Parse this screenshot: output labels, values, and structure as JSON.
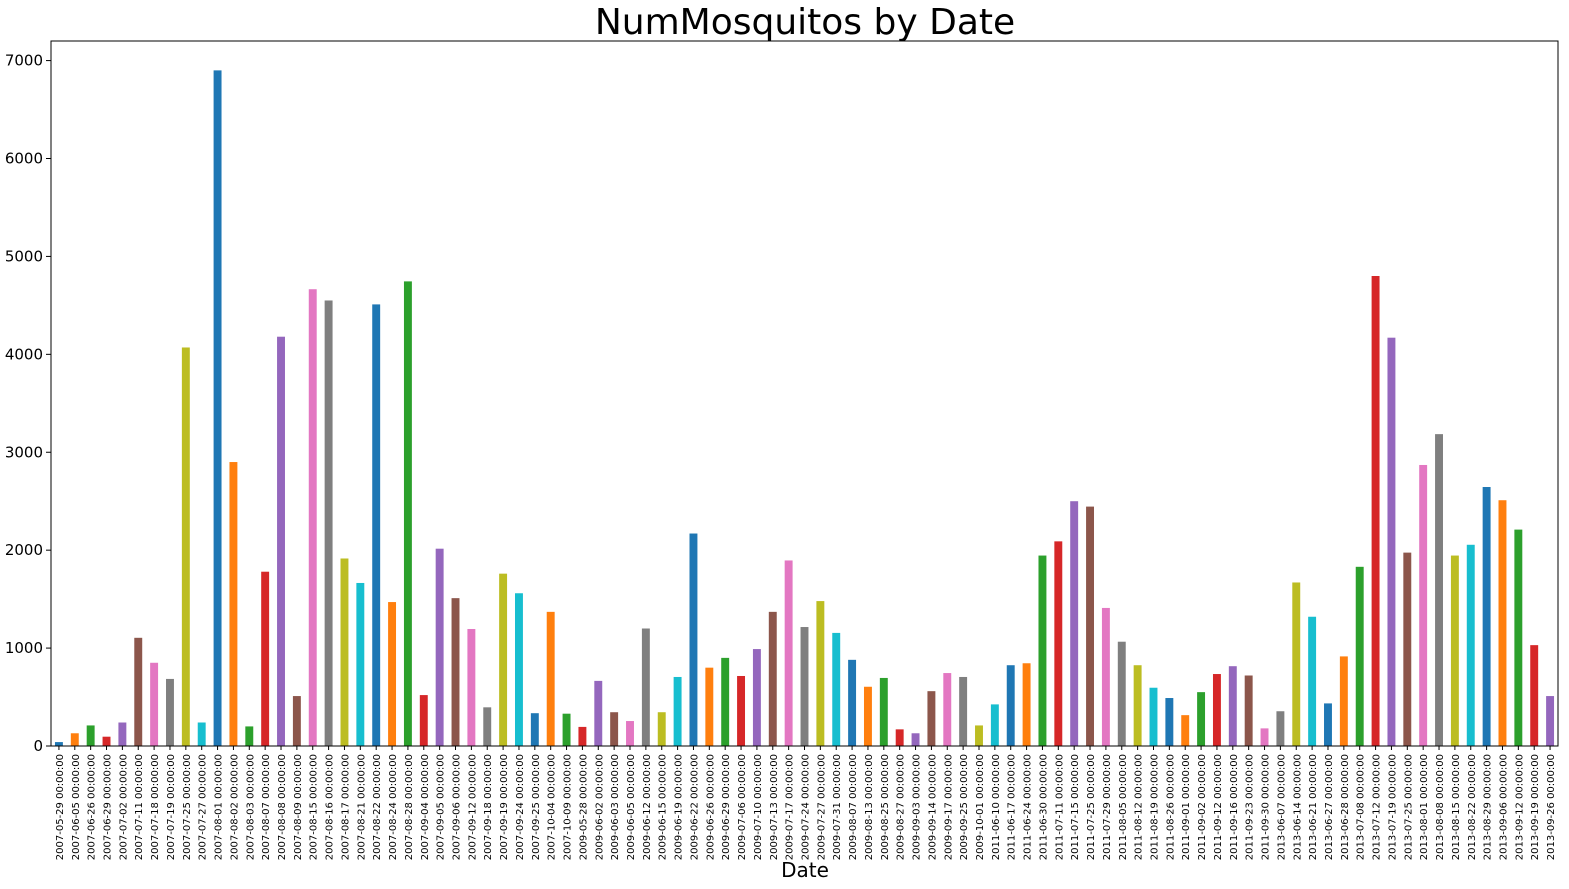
{
  "chart_data": {
    "type": "bar",
    "title": "NumMosquitos by Date",
    "xlabel": "Date",
    "ylabel": "",
    "ylim": [
      0,
      7200
    ],
    "yticks": [
      0,
      1000,
      2000,
      3000,
      4000,
      5000,
      6000,
      7000
    ],
    "grid": false,
    "legend": "none",
    "color_cycle": [
      "#1f77b4",
      "#ff7f0e",
      "#2ca02c",
      "#d62728",
      "#9467bd",
      "#8c564b",
      "#e377c2",
      "#7f7f7f",
      "#bcbd22",
      "#17becf"
    ],
    "categories": [
      "2007-05-29 00:00:00",
      "2007-06-05 00:00:00",
      "2007-06-26 00:00:00",
      "2007-06-29 00:00:00",
      "2007-07-02 00:00:00",
      "2007-07-11 00:00:00",
      "2007-07-18 00:00:00",
      "2007-07-19 00:00:00",
      "2007-07-25 00:00:00",
      "2007-07-27 00:00:00",
      "2007-08-01 00:00:00",
      "2007-08-02 00:00:00",
      "2007-08-03 00:00:00",
      "2007-08-07 00:00:00",
      "2007-08-08 00:00:00",
      "2007-08-09 00:00:00",
      "2007-08-15 00:00:00",
      "2007-08-16 00:00:00",
      "2007-08-17 00:00:00",
      "2007-08-21 00:00:00",
      "2007-08-22 00:00:00",
      "2007-08-24 00:00:00",
      "2007-08-28 00:00:00",
      "2007-09-04 00:00:00",
      "2007-09-05 00:00:00",
      "2007-09-06 00:00:00",
      "2007-09-12 00:00:00",
      "2007-09-18 00:00:00",
      "2007-09-19 00:00:00",
      "2007-09-24 00:00:00",
      "2007-09-25 00:00:00",
      "2007-10-04 00:00:00",
      "2007-10-09 00:00:00",
      "2009-05-28 00:00:00",
      "2009-06-02 00:00:00",
      "2009-06-03 00:00:00",
      "2009-06-05 00:00:00",
      "2009-06-12 00:00:00",
      "2009-06-15 00:00:00",
      "2009-06-19 00:00:00",
      "2009-06-22 00:00:00",
      "2009-06-26 00:00:00",
      "2009-06-29 00:00:00",
      "2009-07-06 00:00:00",
      "2009-07-10 00:00:00",
      "2009-07-13 00:00:00",
      "2009-07-17 00:00:00",
      "2009-07-24 00:00:00",
      "2009-07-27 00:00:00",
      "2009-07-31 00:00:00",
      "2009-08-07 00:00:00",
      "2009-08-13 00:00:00",
      "2009-08-25 00:00:00",
      "2009-08-27 00:00:00",
      "2009-09-03 00:00:00",
      "2009-09-14 00:00:00",
      "2009-09-17 00:00:00",
      "2009-09-25 00:00:00",
      "2009-10-01 00:00:00",
      "2011-06-10 00:00:00",
      "2011-06-17 00:00:00",
      "2011-06-24 00:00:00",
      "2011-06-30 00:00:00",
      "2011-07-11 00:00:00",
      "2011-07-15 00:00:00",
      "2011-07-25 00:00:00",
      "2011-07-29 00:00:00",
      "2011-08-05 00:00:00",
      "2011-08-12 00:00:00",
      "2011-08-19 00:00:00",
      "2011-08-26 00:00:00",
      "2011-09-01 00:00:00",
      "2011-09-02 00:00:00",
      "2011-09-12 00:00:00",
      "2011-09-16 00:00:00",
      "2011-09-23 00:00:00",
      "2011-09-30 00:00:00",
      "2013-06-07 00:00:00",
      "2013-06-14 00:00:00",
      "2013-06-21 00:00:00",
      "2013-06-27 00:00:00",
      "2013-06-28 00:00:00",
      "2013-07-08 00:00:00",
      "2013-07-12 00:00:00",
      "2013-07-19 00:00:00",
      "2013-07-25 00:00:00",
      "2013-08-01 00:00:00",
      "2013-08-08 00:00:00",
      "2013-08-15 00:00:00",
      "2013-08-22 00:00:00",
      "2013-08-29 00:00:00",
      "2013-09-06 00:00:00",
      "2013-09-12 00:00:00",
      "2013-09-19 00:00:00",
      "2013-09-26 00:00:00"
    ],
    "values": [
      40,
      130,
      210,
      95,
      240,
      1105,
      850,
      685,
      4070,
      240,
      6900,
      2900,
      200,
      1780,
      4180,
      510,
      4665,
      4550,
      1915,
      1665,
      4510,
      1470,
      4745,
      520,
      2015,
      1510,
      1195,
      395,
      1760,
      1560,
      335,
      1370,
      330,
      195,
      665,
      345,
      255,
      1200,
      345,
      705,
      2170,
      800,
      900,
      715,
      990,
      1370,
      1895,
      1215,
      1480,
      1155,
      880,
      605,
      695,
      170,
      130,
      560,
      745,
      705,
      210,
      425,
      825,
      845,
      1945,
      2090,
      2500,
      2445,
      1410,
      1065,
      825,
      595,
      490,
      315,
      550,
      735,
      815,
      720,
      180,
      355,
      1670,
      1320,
      435,
      915,
      1830,
      4800,
      4170,
      1975,
      2870,
      3185,
      1945,
      2055,
      2645,
      2510,
      2210,
      1030,
      510
    ]
  }
}
